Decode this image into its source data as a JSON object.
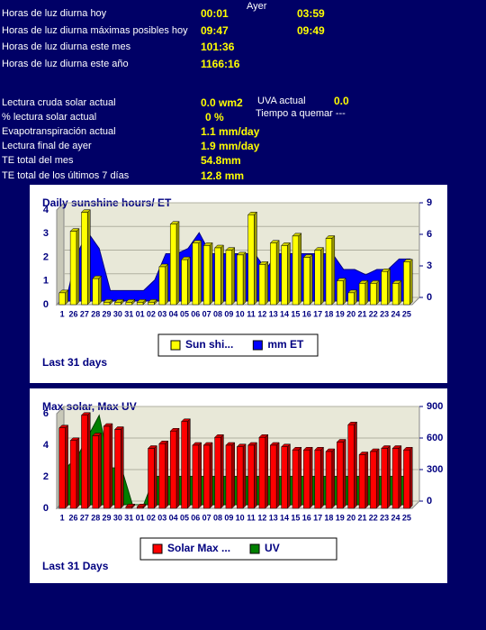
{
  "summary": {
    "yesterday_header": "Ayer",
    "rows": [
      {
        "label": "Horas de luz diurna hoy",
        "today": "00:01",
        "yesterday": "03:59"
      },
      {
        "label": "Horas de luz diurna máximas posibles hoy",
        "today": "09:47",
        "yesterday": "09:49"
      },
      {
        "label": "Horas de luz diurna este mes",
        "today": "101:36"
      },
      {
        "label": "Horas de luz diurna este año",
        "today": "1166:16"
      }
    ],
    "readings": [
      {
        "label": "Lectura cruda solar actual",
        "value": "0.0 wm2"
      },
      {
        "label": "% lectura solar actual",
        "value": "0 %"
      },
      {
        "label": "Evapotranspiración actual",
        "value": "1.1 mm/day"
      },
      {
        "label": "Lectura final de ayer",
        "value": "1.9 mm/day"
      },
      {
        "label": "TE total del mes",
        "value": "54.8mm"
      },
      {
        "label": "TE total de los últimos 7 días",
        "value": "12.8 mm"
      }
    ],
    "uva": {
      "label": "UVA actual",
      "value": "0.0"
    },
    "burn": "Tiempo a quemar ---"
  },
  "chart_data": [
    {
      "type": "bar",
      "title": "Daily sunshine hours/ ET",
      "footer": "Last 31 days",
      "categories": [
        "1",
        "26",
        "27",
        "28",
        "29",
        "30",
        "31",
        "01",
        "02",
        "03",
        "04",
        "05",
        "06",
        "07",
        "08",
        "09",
        "10",
        "11",
        "12",
        "13",
        "14",
        "15",
        "16",
        "17",
        "18",
        "19",
        "20",
        "21",
        "22",
        "23",
        "24",
        "25"
      ],
      "series": [
        {
          "name": "Sun shi...",
          "color": "#ffff00",
          "kind": "bar",
          "values": [
            0.5,
            3.1,
            3.9,
            1.1,
            0.1,
            0.1,
            0.1,
            0.1,
            0.1,
            1.6,
            3.4,
            1.9,
            2.6,
            2.5,
            2.4,
            2.3,
            2.1,
            3.8,
            1.7,
            2.6,
            2.5,
            2.9,
            2.0,
            2.3,
            2.8,
            1.0,
            0.5,
            0.9,
            0.9,
            1.4,
            0.9,
            1.8
          ]
        },
        {
          "name": "mm ET",
          "color": "#0000ff",
          "kind": "area",
          "axis": "y2",
          "values": [
            0,
            4.5,
            6.5,
            5,
            1,
            1,
            1,
            1,
            2,
            4.5,
            4.5,
            5,
            6.5,
            4.5,
            4.5,
            4.5,
            4.5,
            4.5,
            3,
            4.5,
            4.5,
            4.5,
            4.5,
            4.5,
            4.5,
            3,
            3,
            2.5,
            3,
            3,
            4,
            4
          ]
        }
      ],
      "ylim": [
        0,
        4
      ],
      "yticks": [
        0,
        1,
        2,
        3,
        4
      ],
      "y2lim": [
        0,
        9
      ],
      "y2ticks": [
        0,
        3,
        6,
        9
      ]
    },
    {
      "type": "bar",
      "title": "Max solar, Max UV",
      "footer": "Last 31 Days",
      "categories": [
        "1",
        "26",
        "27",
        "28",
        "29",
        "30",
        "31",
        "01",
        "02",
        "03",
        "04",
        "05",
        "06",
        "07",
        "08",
        "09",
        "10",
        "11",
        "12",
        "13",
        "14",
        "15",
        "16",
        "17",
        "18",
        "19",
        "20",
        "21",
        "22",
        "23",
        "24",
        "25"
      ],
      "series": [
        {
          "name": "Solar Max ...",
          "color": "#ff0000",
          "kind": "bar",
          "values": [
            5.1,
            4.3,
            5.9,
            4.6,
            5.2,
            5.0,
            0.1,
            0.1,
            3.8,
            4.1,
            4.9,
            5.5,
            4.0,
            4.0,
            4.5,
            4.0,
            3.9,
            4.0,
            4.5,
            4.0,
            3.9,
            3.7,
            3.7,
            3.7,
            3.6,
            4.2,
            5.3,
            3.4,
            3.6,
            3.8,
            3.8,
            3.7
          ]
        },
        {
          "name": "UV",
          "color": "#008000",
          "kind": "area",
          "axis": "y2",
          "values": [
            350,
            450,
            650,
            850,
            350,
            350,
            0,
            0,
            270,
            270,
            270,
            270,
            270,
            270,
            270,
            270,
            270,
            270,
            270,
            270,
            270,
            270,
            270,
            270,
            270,
            270,
            270,
            270,
            270,
            270,
            270,
            270
          ]
        }
      ],
      "ylim": [
        0,
        6
      ],
      "yticks": [
        0,
        2,
        4,
        6
      ],
      "y2lim": [
        0,
        900
      ],
      "y2ticks": [
        0,
        300,
        600,
        900
      ]
    }
  ]
}
